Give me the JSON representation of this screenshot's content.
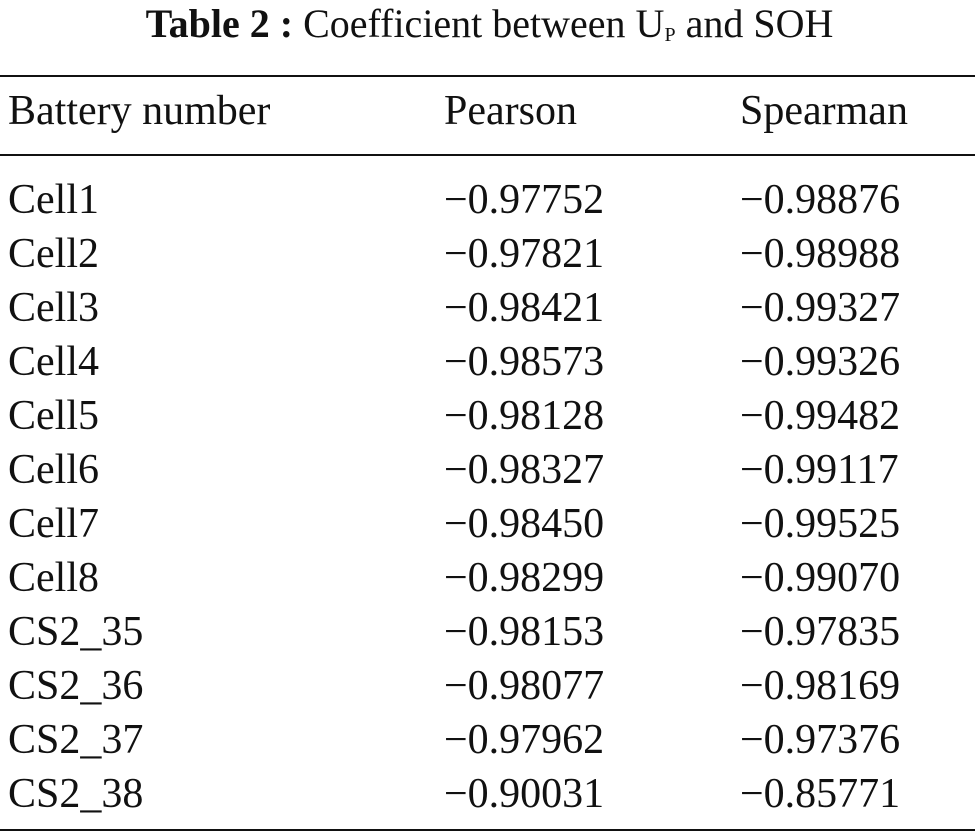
{
  "title": {
    "label": "Table 2 :",
    "caption": "Coefficient between U",
    "subscript": "P",
    "caption_end": "and SOH"
  },
  "table": {
    "header": [
      "Battery number",
      "Pearson",
      "Spearman"
    ],
    "rows": [
      [
        "Cell1",
        "−0.97752",
        "−0.98876"
      ],
      [
        "Cell2",
        "−0.97821",
        "−0.98988"
      ],
      [
        "Cell3",
        "−0.98421",
        "−0.99327"
      ],
      [
        "Cell4",
        "−0.98573",
        "−0.99326"
      ],
      [
        "Cell5",
        "−0.98128",
        "−0.99482"
      ],
      [
        "Cell6",
        "−0.98327",
        "−0.99117"
      ],
      [
        "Cell7",
        "−0.98450",
        "−0.99525"
      ],
      [
        "Cell8",
        "−0.98299",
        "−0.99070"
      ],
      [
        "CS2_35",
        "−0.98153",
        "−0.97835"
      ],
      [
        "CS2_36",
        "−0.98077",
        "−0.98169"
      ],
      [
        "CS2_37",
        "−0.97962",
        "−0.97376"
      ],
      [
        "CS2_38",
        "−0.90031",
        "−0.85771"
      ]
    ]
  }
}
